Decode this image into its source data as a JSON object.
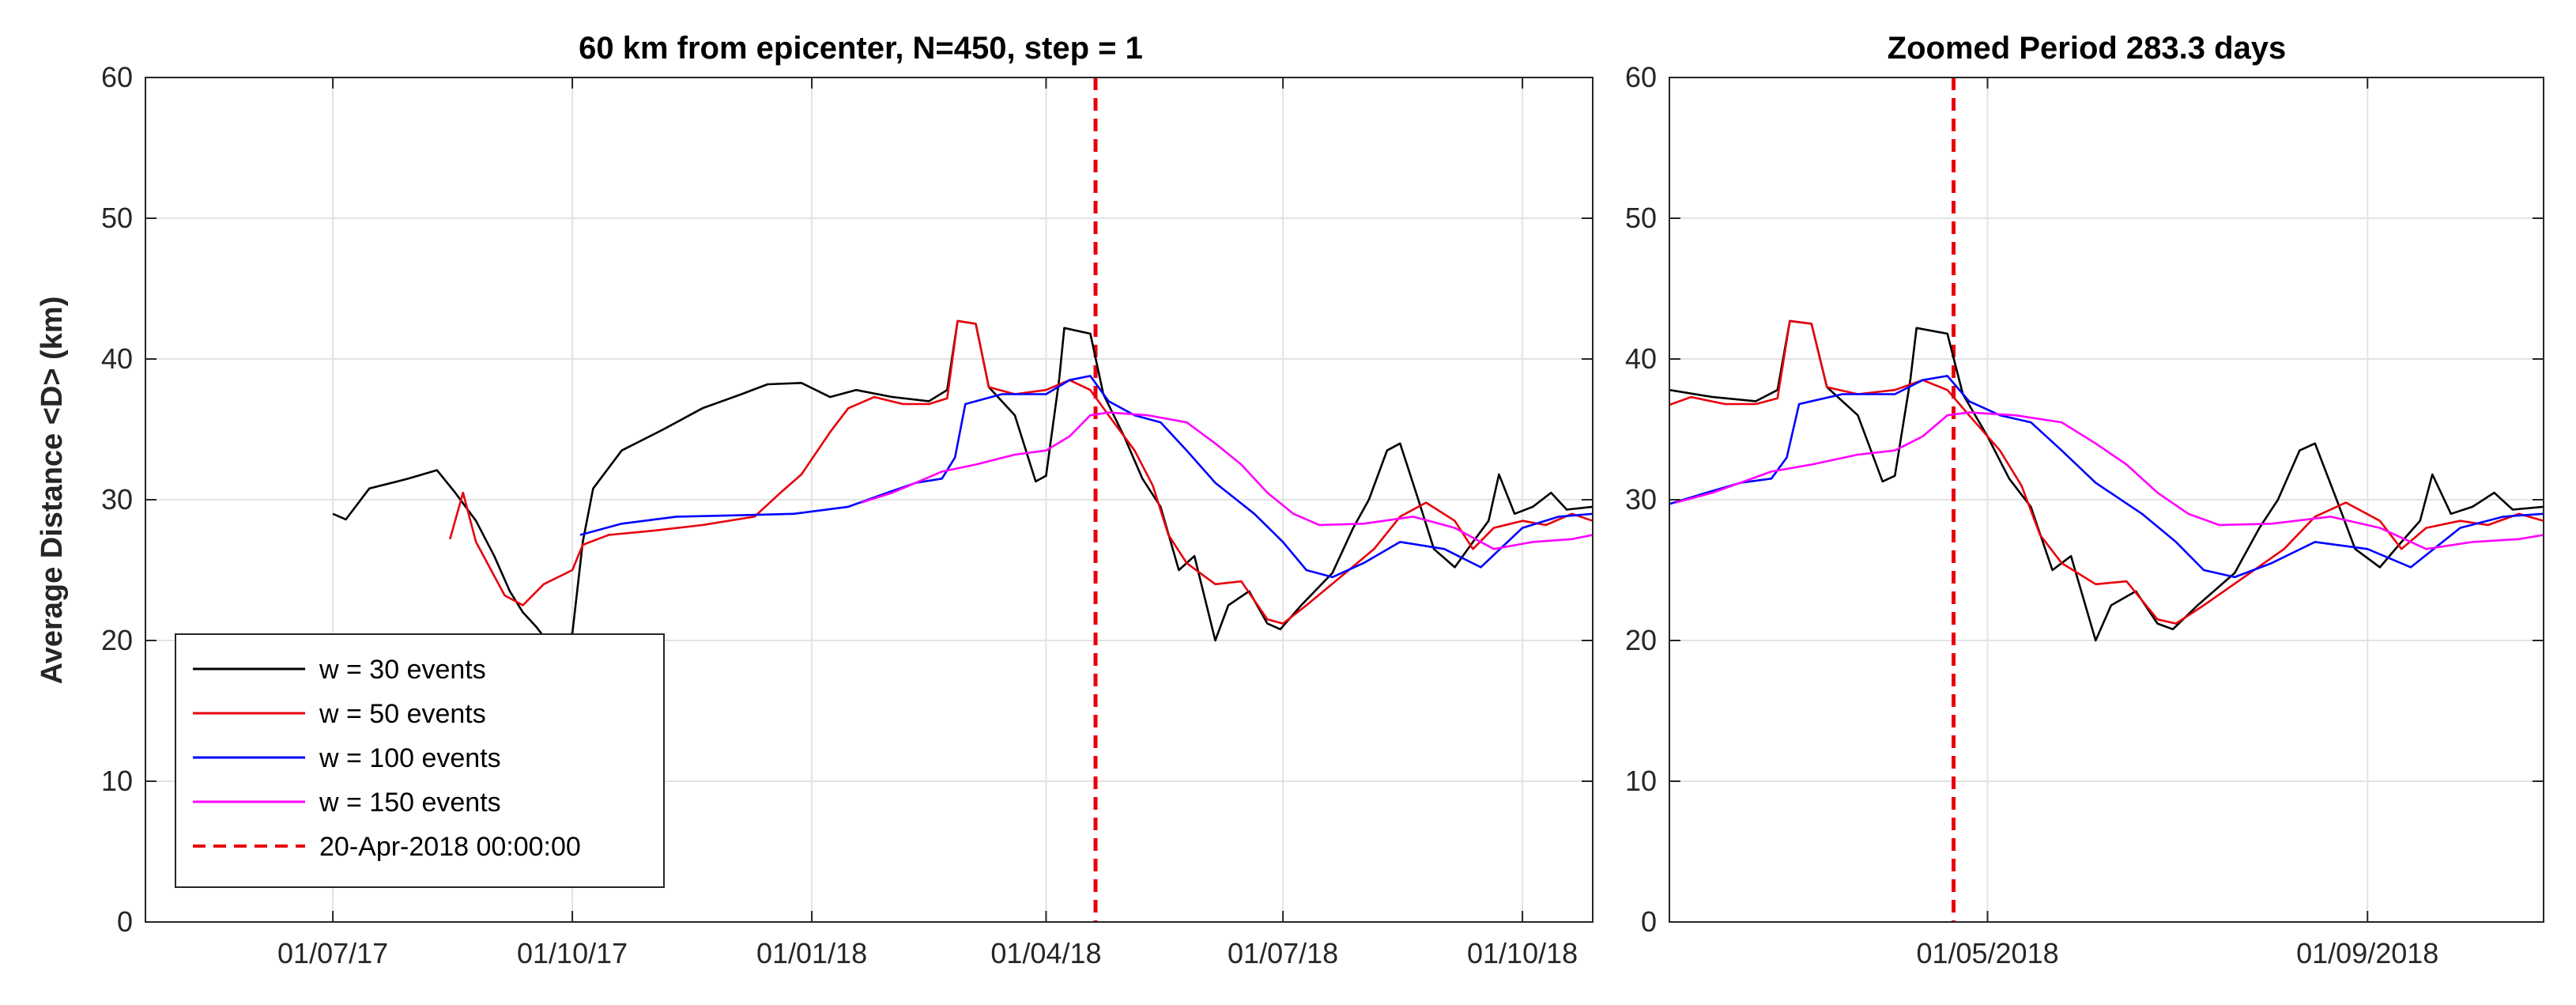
{
  "chart_data": [
    {
      "type": "line",
      "title": "60 km from epicenter, N=450, step = 1",
      "xlabel": "",
      "ylabel": "Average Distance <D> (km)",
      "x_axis": "date",
      "xlim": [
        "2017-04-20",
        "2018-10-28"
      ],
      "ylim": [
        0,
        60
      ],
      "yticks": [
        0,
        10,
        20,
        30,
        40,
        50,
        60
      ],
      "xticks": [
        {
          "date": "2017-07-01",
          "label": "01/07/17"
        },
        {
          "date": "2017-10-01",
          "label": "01/10/17"
        },
        {
          "date": "2018-01-01",
          "label": "01/01/18"
        },
        {
          "date": "2018-04-01",
          "label": "01/04/18"
        },
        {
          "date": "2018-07-01",
          "label": "01/07/18"
        },
        {
          "date": "2018-10-01",
          "label": "01/10/18"
        }
      ],
      "grid": true,
      "legend_position": "bottom-left",
      "vline": {
        "date": "2018-04-20",
        "label": "20-Apr-2018 00:00:00",
        "color": "#e8000b"
      },
      "series": [
        {
          "name": "w = 30 events",
          "color": "#000000",
          "points": [
            [
              "2017-07-01",
              29
            ],
            [
              "2017-07-06",
              28.6
            ],
            [
              "2017-07-15",
              30.8
            ],
            [
              "2017-07-30",
              31.5
            ],
            [
              "2017-08-10",
              32.1
            ],
            [
              "2017-08-17",
              30.5
            ],
            [
              "2017-08-25",
              28.5
            ],
            [
              "2017-09-01",
              26
            ],
            [
              "2017-09-07",
              23.5
            ],
            [
              "2017-09-12",
              22
            ],
            [
              "2017-09-17",
              21
            ],
            [
              "2017-09-22",
              19.8
            ],
            [
              "2017-10-01",
              20.5
            ],
            [
              "2017-10-05",
              27
            ],
            [
              "2017-10-09",
              30.8
            ],
            [
              "2017-10-20",
              33.5
            ],
            [
              "2017-11-05",
              35
            ],
            [
              "2017-11-20",
              36.5
            ],
            [
              "2017-12-05",
              37.5
            ],
            [
              "2017-12-15",
              38.2
            ],
            [
              "2017-12-28",
              38.3
            ],
            [
              "2018-01-08",
              37.3
            ],
            [
              "2018-01-18",
              37.8
            ],
            [
              "2018-02-01",
              37.3
            ],
            [
              "2018-02-15",
              37
            ],
            [
              "2018-02-22",
              37.8
            ],
            [
              "2018-02-26",
              42.7
            ],
            [
              "2018-03-05",
              42.5
            ],
            [
              "2018-03-10",
              38
            ],
            [
              "2018-03-20",
              36
            ],
            [
              "2018-03-28",
              31.3
            ],
            [
              "2018-04-01",
              31.7
            ],
            [
              "2018-04-06",
              38.5
            ],
            [
              "2018-04-08",
              42.2
            ],
            [
              "2018-04-18",
              41.8
            ],
            [
              "2018-04-23",
              37.5
            ],
            [
              "2018-05-01",
              34.5
            ],
            [
              "2018-05-08",
              31.5
            ],
            [
              "2018-05-15",
              29.5
            ],
            [
              "2018-05-22",
              25
            ],
            [
              "2018-05-28",
              26
            ],
            [
              "2018-06-01",
              23
            ],
            [
              "2018-06-05",
              20
            ],
            [
              "2018-06-10",
              22.5
            ],
            [
              "2018-06-18",
              23.5
            ],
            [
              "2018-06-25",
              21.2
            ],
            [
              "2018-06-30",
              20.8
            ],
            [
              "2018-07-08",
              22.5
            ],
            [
              "2018-07-20",
              24.8
            ],
            [
              "2018-07-28",
              28
            ],
            [
              "2018-08-03",
              30
            ],
            [
              "2018-08-10",
              33.5
            ],
            [
              "2018-08-15",
              34
            ],
            [
              "2018-08-22",
              30
            ],
            [
              "2018-08-28",
              26.5
            ],
            [
              "2018-09-05",
              25.2
            ],
            [
              "2018-09-12",
              27
            ],
            [
              "2018-09-18",
              28.5
            ],
            [
              "2018-09-22",
              31.8
            ],
            [
              "2018-09-28",
              29
            ],
            [
              "2018-10-05",
              29.5
            ],
            [
              "2018-10-12",
              30.5
            ],
            [
              "2018-10-18",
              29.3
            ],
            [
              "2018-10-28",
              29.5
            ]
          ]
        },
        {
          "name": "w = 50 events",
          "color": "#e8000b",
          "points": [
            [
              "2017-08-15",
              27.2
            ],
            [
              "2017-08-20",
              30.5
            ],
            [
              "2017-08-25",
              27
            ],
            [
              "2017-09-05",
              23.2
            ],
            [
              "2017-09-12",
              22.5
            ],
            [
              "2017-09-20",
              24
            ],
            [
              "2017-10-01",
              25
            ],
            [
              "2017-10-05",
              26.8
            ],
            [
              "2017-10-15",
              27.5
            ],
            [
              "2017-11-01",
              27.8
            ],
            [
              "2017-11-20",
              28.2
            ],
            [
              "2017-12-10",
              28.8
            ],
            [
              "2017-12-20",
              30.5
            ],
            [
              "2017-12-28",
              31.8
            ],
            [
              "2018-01-08",
              34.8
            ],
            [
              "2018-01-15",
              36.5
            ],
            [
              "2018-01-25",
              37.3
            ],
            [
              "2018-02-05",
              36.8
            ],
            [
              "2018-02-15",
              36.8
            ],
            [
              "2018-02-22",
              37.2
            ],
            [
              "2018-02-26",
              42.7
            ],
            [
              "2018-03-05",
              42.5
            ],
            [
              "2018-03-10",
              38
            ],
            [
              "2018-03-20",
              37.5
            ],
            [
              "2018-04-01",
              37.8
            ],
            [
              "2018-04-10",
              38.5
            ],
            [
              "2018-04-18",
              37.8
            ],
            [
              "2018-04-25",
              36
            ],
            [
              "2018-05-05",
              33.5
            ],
            [
              "2018-05-12",
              31
            ],
            [
              "2018-05-18",
              27.5
            ],
            [
              "2018-05-25",
              25.5
            ],
            [
              "2018-06-05",
              24
            ],
            [
              "2018-06-15",
              24.2
            ],
            [
              "2018-06-25",
              21.5
            ],
            [
              "2018-07-01",
              21.2
            ],
            [
              "2018-07-10",
              22.5
            ],
            [
              "2018-07-25",
              24.8
            ],
            [
              "2018-08-05",
              26.5
            ],
            [
              "2018-08-15",
              28.8
            ],
            [
              "2018-08-25",
              29.8
            ],
            [
              "2018-09-05",
              28.5
            ],
            [
              "2018-09-12",
              26.5
            ],
            [
              "2018-09-20",
              28
            ],
            [
              "2018-10-01",
              28.5
            ],
            [
              "2018-10-10",
              28.2
            ],
            [
              "2018-10-20",
              29
            ],
            [
              "2018-10-28",
              28.5
            ]
          ]
        },
        {
          "name": "w = 100 events",
          "color": "#0000ff",
          "points": [
            [
              "2017-10-04",
              27.5
            ],
            [
              "2017-10-20",
              28.3
            ],
            [
              "2017-11-10",
              28.8
            ],
            [
              "2017-12-05",
              28.9
            ],
            [
              "2017-12-25",
              29
            ],
            [
              "2018-01-15",
              29.5
            ],
            [
              "2018-01-30",
              30.5
            ],
            [
              "2018-02-10",
              31.2
            ],
            [
              "2018-02-20",
              31.5
            ],
            [
              "2018-02-25",
              33
            ],
            [
              "2018-03-01",
              36.8
            ],
            [
              "2018-03-15",
              37.5
            ],
            [
              "2018-04-01",
              37.5
            ],
            [
              "2018-04-10",
              38.5
            ],
            [
              "2018-04-18",
              38.8
            ],
            [
              "2018-04-25",
              37
            ],
            [
              "2018-05-05",
              36
            ],
            [
              "2018-05-15",
              35.5
            ],
            [
              "2018-05-25",
              33.5
            ],
            [
              "2018-06-05",
              31.2
            ],
            [
              "2018-06-20",
              29
            ],
            [
              "2018-07-01",
              27
            ],
            [
              "2018-07-10",
              25
            ],
            [
              "2018-07-20",
              24.5
            ],
            [
              "2018-08-01",
              25.5
            ],
            [
              "2018-08-15",
              27
            ],
            [
              "2018-09-01",
              26.5
            ],
            [
              "2018-09-15",
              25.2
            ],
            [
              "2018-10-01",
              28
            ],
            [
              "2018-10-15",
              28.8
            ],
            [
              "2018-10-28",
              29
            ]
          ]
        },
        {
          "name": "w = 150 events",
          "color": "#ff00ff",
          "points": [
            [
              "2018-01-20",
              29.8
            ],
            [
              "2018-02-01",
              30.5
            ],
            [
              "2018-02-20",
              32
            ],
            [
              "2018-03-05",
              32.5
            ],
            [
              "2018-03-20",
              33.2
            ],
            [
              "2018-04-01",
              33.5
            ],
            [
              "2018-04-10",
              34.5
            ],
            [
              "2018-04-18",
              36
            ],
            [
              "2018-04-25",
              36.2
            ],
            [
              "2018-05-10",
              36
            ],
            [
              "2018-05-25",
              35.5
            ],
            [
              "2018-06-05",
              34
            ],
            [
              "2018-06-15",
              32.5
            ],
            [
              "2018-06-25",
              30.5
            ],
            [
              "2018-07-05",
              29
            ],
            [
              "2018-07-15",
              28.2
            ],
            [
              "2018-08-01",
              28.3
            ],
            [
              "2018-08-20",
              28.8
            ],
            [
              "2018-09-05",
              28
            ],
            [
              "2018-09-20",
              26.5
            ],
            [
              "2018-10-05",
              27
            ],
            [
              "2018-10-20",
              27.2
            ],
            [
              "2018-10-28",
              27.5
            ]
          ]
        }
      ]
    },
    {
      "type": "line",
      "title": "Zoomed Period 283.3 days",
      "xlabel": "",
      "ylabel": "",
      "x_axis": "date",
      "xlim": [
        "2018-01-18",
        "2018-10-28"
      ],
      "ylim": [
        0,
        60
      ],
      "yticks": [
        0,
        10,
        20,
        30,
        40,
        50,
        60
      ],
      "xticks": [
        {
          "date": "2018-05-01",
          "label": "01/05/2018"
        },
        {
          "date": "2018-09-01",
          "label": "01/09/2018"
        }
      ],
      "grid": true,
      "vline": {
        "date": "2018-04-20",
        "color": "#e8000b"
      },
      "series_note": "same series as panel 1, zoomed"
    }
  ]
}
